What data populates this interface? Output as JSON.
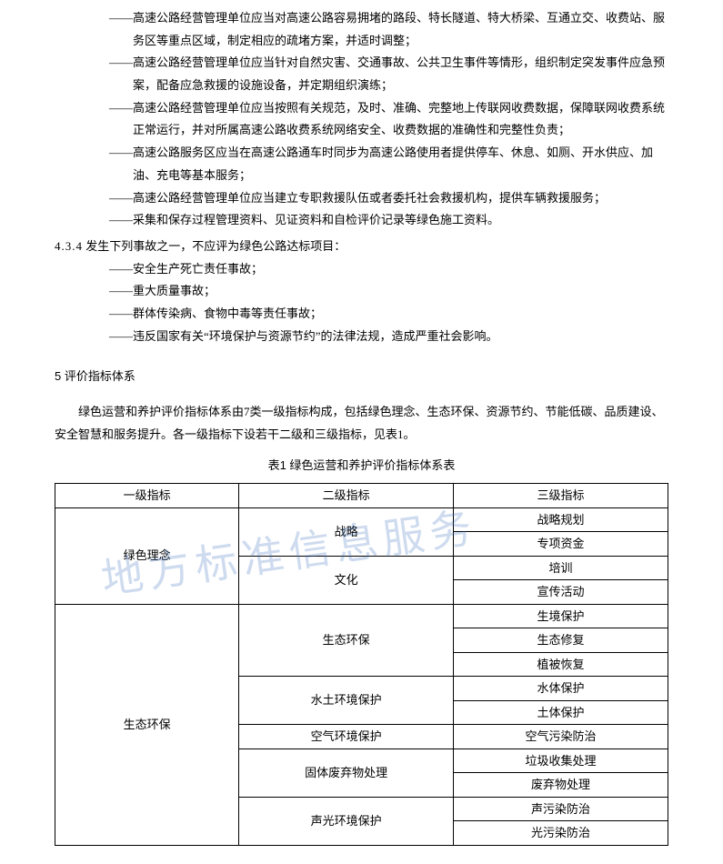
{
  "bullets_a": [
    "高速公路经营管理单位应当对高速公路容易拥堵的路段、特长隧道、特大桥梁、互通立交、收费站、服务区等重点区域，制定相应的疏堵方案，并适时调整；",
    "高速公路经营管理单位应当针对自然灾害、交通事故、公共卫生事件等情形，组织制定突发事件应急预案，配备应急救援的设施设备，并定期组织演练；",
    "高速公路经营管理单位应当按照有关规范，及时、准确、完整地上传联网收费数据，保障联网收费系统正常运行，并对所属高速公路收费系统网络安全、收费数据的准确性和完整性负责；",
    "高速公路服务区应当在高速公路通车时同步为高速公路使用者提供停车、休息、如厕、开水供应、加油、充电等基本服务；",
    "高速公路经营管理单位应当建立专职救援队伍或者委托社会救援机构，提供车辆救援服务；",
    "采集和保存过程管理资料、见证资料和自检评价记录等绿色施工资料。"
  ],
  "clause_434": {
    "num": "4.3.4",
    "text": "发生下列事故之一，不应评为绿色公路达标项目："
  },
  "bullets_b": [
    "安全生产死亡责任事故；",
    "重大质量事故；",
    "群体传染病、食物中毒等责任事故；",
    "违反国家有关“环境保护与资源节约”的法律法规，造成严重社会影响。"
  ],
  "section5": "5  评价指标体系",
  "intro": "绿色运营和养护评价指标体系由7类一级指标构成，包括绿色理念、生态环保、资源节约、节能低碳、品质建设、安全智慧和服务提升。各一级指标下设若干二级和三级指标，见表1。",
  "table_title": "表1  绿色运营和养护评价指标体系表",
  "table": {
    "headers": [
      "一级指标",
      "二级指标",
      "三级指标"
    ],
    "col_widths": [
      "30%",
      "35%",
      "35%"
    ],
    "rows": [
      {
        "l1": "绿色理念",
        "l1_rows": 4,
        "l2": "战略",
        "l2_rows": 2,
        "l3": "战略规划"
      },
      {
        "l3": "专项资金"
      },
      {
        "l2": "文化",
        "l2_rows": 2,
        "l3": "培训"
      },
      {
        "l3": "宣传活动"
      },
      {
        "l1": "生态环保",
        "l1_rows": 10,
        "l2": "生态环保",
        "l2_rows": 3,
        "l3": "生境保护"
      },
      {
        "l3": "生态修复"
      },
      {
        "l3": "植被恢复"
      },
      {
        "l2": "水土环境保护",
        "l2_rows": 2,
        "l3": "水体保护"
      },
      {
        "l3": "土体保护"
      },
      {
        "l2": "空气环境保护",
        "l2_rows": 1,
        "l3": "空气污染防治"
      },
      {
        "l2": "固体废弃物处理",
        "l2_rows": 2,
        "l3": "垃圾收集处理"
      },
      {
        "l3": "废弃物处理"
      },
      {
        "l2": "声光环境保护",
        "l2_rows": 2,
        "l3": "声污染防治"
      },
      {
        "l3": "光污染防治"
      }
    ]
  },
  "watermark": "地方标准信息服务"
}
